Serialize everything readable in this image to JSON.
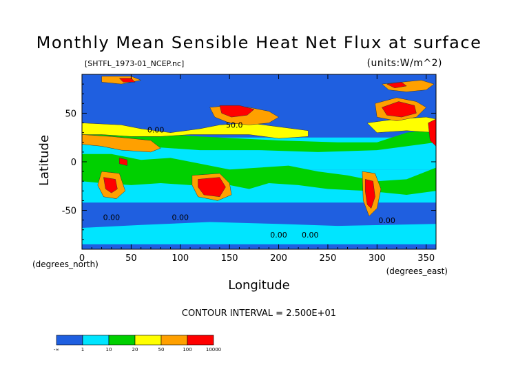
{
  "chart_data": {
    "type": "heatmap",
    "title": "Monthly Mean Sensible Heat Net Flux at surface",
    "subtitle_left": "[SHTFL_1973-01_NCEP.nc]",
    "units_label": "(units:W/m^2)",
    "xlabel": "Longitude",
    "ylabel": "Latitude",
    "x_unit_note": "(degrees_east)",
    "y_unit_note": "(degrees_north)",
    "xlim": [
      0,
      360
    ],
    "ylim": [
      -90,
      90
    ],
    "x_ticks": [
      0,
      50,
      100,
      150,
      200,
      250,
      300,
      350
    ],
    "y_ticks": [
      50,
      0,
      -50
    ],
    "footer": "CONTOUR INTERVAL = 2.500E+01",
    "contour_labels": [
      {
        "text": "50.0",
        "lon": 155,
        "lat": 35
      },
      {
        "text": "0.00",
        "lon": 30,
        "lat": -60
      },
      {
        "text": "0.00",
        "lon": 100,
        "lat": -60
      },
      {
        "text": "0.00",
        "lon": 200,
        "lat": -78
      },
      {
        "text": "0.00",
        "lon": 232,
        "lat": -78
      },
      {
        "text": "0.00",
        "lon": 310,
        "lat": -63
      },
      {
        "text": "0.00",
        "lon": 75,
        "lat": 30
      }
    ],
    "colorbar": {
      "colors": [
        "#1f5fe0",
        "#00e5ff",
        "#00d000",
        "#ffff00",
        "#ffa000",
        "#ff0000"
      ],
      "labels": [
        "-∞",
        "1",
        "10",
        "20",
        "50",
        "100",
        "10000"
      ]
    },
    "field": {
      "description_levels": "0=<1 (blue),1=1-10 (cyan),2=10-20 (green),3=20-50 (yellow),4=50-100 (orange),5=>100 (red)",
      "regions": [
        {
          "level": 0,
          "poly": [
            [
              0,
              90
            ],
            [
              360,
              90
            ],
            [
              360,
              -90
            ],
            [
              0,
              -90
            ]
          ]
        },
        {
          "level": 1,
          "poly": [
            [
              0,
              -8
            ],
            [
              360,
              -8
            ],
            [
              360,
              -42
            ],
            [
              0,
              -42
            ]
          ]
        },
        {
          "level": 1,
          "poly": [
            [
              0,
              25
            ],
            [
              360,
              25
            ],
            [
              360,
              -8
            ],
            [
              0,
              -8
            ]
          ]
        },
        {
          "level": 1,
          "poly": [
            [
              0,
              -68
            ],
            [
              60,
              -65
            ],
            [
              130,
              -62
            ],
            [
              200,
              -64
            ],
            [
              260,
              -66
            ],
            [
              360,
              -64
            ],
            [
              360,
              -85
            ],
            [
              0,
              -85
            ]
          ]
        },
        {
          "level": 2,
          "poly": [
            [
              0,
              8
            ],
            [
              30,
              8
            ],
            [
              60,
              2
            ],
            [
              90,
              4
            ],
            [
              120,
              -2
            ],
            [
              150,
              -8
            ],
            [
              180,
              -6
            ],
            [
              210,
              -4
            ],
            [
              240,
              -10
            ],
            [
              270,
              -14
            ],
            [
              300,
              -20
            ],
            [
              330,
              -18
            ],
            [
              360,
              -6
            ],
            [
              360,
              -30
            ],
            [
              330,
              -34
            ],
            [
              290,
              -30
            ],
            [
              250,
              -28
            ],
            [
              220,
              -24
            ],
            [
              190,
              -22
            ],
            [
              170,
              -28
            ],
            [
              140,
              -22
            ],
            [
              110,
              -24
            ],
            [
              80,
              -22
            ],
            [
              50,
              -24
            ],
            [
              20,
              -22
            ],
            [
              0,
              -20
            ]
          ]
        },
        {
          "level": 2,
          "poly": [
            [
              0,
              34
            ],
            [
              60,
              30
            ],
            [
              120,
              26
            ],
            [
              160,
              24
            ],
            [
              200,
              22
            ],
            [
              260,
              20
            ],
            [
              300,
              20
            ],
            [
              330,
              30
            ],
            [
              360,
              34
            ],
            [
              360,
              20
            ],
            [
              300,
              12
            ],
            [
              240,
              10
            ],
            [
              180,
              12
            ],
            [
              120,
              12
            ],
            [
              60,
              16
            ],
            [
              0,
              18
            ]
          ]
        },
        {
          "level": 3,
          "poly": [
            [
              0,
              40
            ],
            [
              40,
              38
            ],
            [
              60,
              34
            ],
            [
              90,
              30
            ],
            [
              120,
              34
            ],
            [
              140,
              38
            ],
            [
              170,
              40
            ],
            [
              200,
              36
            ],
            [
              230,
              32
            ],
            [
              230,
              26
            ],
            [
              200,
              24
            ],
            [
              170,
              28
            ],
            [
              140,
              28
            ],
            [
              110,
              28
            ],
            [
              80,
              26
            ],
            [
              50,
              26
            ],
            [
              20,
              28
            ],
            [
              0,
              28
            ]
          ]
        },
        {
          "level": 3,
          "poly": [
            [
              290,
              40
            ],
            [
              320,
              44
            ],
            [
              350,
              46
            ],
            [
              360,
              44
            ],
            [
              360,
              30
            ],
            [
              330,
              32
            ],
            [
              300,
              30
            ]
          ]
        },
        {
          "level": 4,
          "poly": [
            [
              130,
              56
            ],
            [
              150,
              58
            ],
            [
              170,
              56
            ],
            [
              190,
              52
            ],
            [
              200,
              46
            ],
            [
              190,
              40
            ],
            [
              170,
              38
            ],
            [
              150,
              40
            ],
            [
              135,
              46
            ]
          ]
        },
        {
          "level": 4,
          "poly": [
            [
              0,
              28
            ],
            [
              30,
              26
            ],
            [
              50,
              24
            ],
            [
              70,
              22
            ],
            [
              80,
              14
            ],
            [
              70,
              10
            ],
            [
              40,
              12
            ],
            [
              20,
              16
            ],
            [
              0,
              18
            ]
          ]
        },
        {
          "level": 4,
          "poly": [
            [
              298,
              60
            ],
            [
              320,
              66
            ],
            [
              340,
              62
            ],
            [
              350,
              56
            ],
            [
              340,
              46
            ],
            [
              320,
              42
            ],
            [
              300,
              46
            ]
          ]
        },
        {
          "level": 4,
          "poly": [
            [
              20,
              -10
            ],
            [
              38,
              -12
            ],
            [
              44,
              -30
            ],
            [
              35,
              -38
            ],
            [
              22,
              -36
            ],
            [
              16,
              -24
            ]
          ]
        },
        {
          "level": 4,
          "poly": [
            [
              112,
              -14
            ],
            [
              140,
              -12
            ],
            [
              150,
              -22
            ],
            [
              152,
              -34
            ],
            [
              138,
              -40
            ],
            [
              118,
              -36
            ],
            [
              112,
              -24
            ]
          ]
        },
        {
          "level": 4,
          "poly": [
            [
              285,
              -10
            ],
            [
              298,
              -12
            ],
            [
              304,
              -28
            ],
            [
              300,
              -48
            ],
            [
              292,
              -56
            ],
            [
              286,
              -40
            ]
          ]
        },
        {
          "level": 4,
          "poly": [
            [
              20,
              88
            ],
            [
              50,
              88
            ],
            [
              60,
              84
            ],
            [
              40,
              80
            ],
            [
              20,
              82
            ]
          ]
        },
        {
          "level": 4,
          "poly": [
            [
              305,
              80
            ],
            [
              345,
              84
            ],
            [
              358,
              80
            ],
            [
              350,
              74
            ],
            [
              330,
              72
            ],
            [
              312,
              74
            ]
          ]
        },
        {
          "level": 5,
          "poly": [
            [
              140,
              58
            ],
            [
              160,
              58
            ],
            [
              175,
              54
            ],
            [
              168,
              48
            ],
            [
              152,
              46
            ],
            [
              142,
              50
            ]
          ]
        },
        {
          "level": 5,
          "poly": [
            [
              305,
              56
            ],
            [
              322,
              62
            ],
            [
              338,
              58
            ],
            [
              340,
              50
            ],
            [
              325,
              46
            ],
            [
              310,
              48
            ]
          ]
        },
        {
          "level": 5,
          "poly": [
            [
              22,
              -16
            ],
            [
              34,
              -18
            ],
            [
              36,
              -28
            ],
            [
              30,
              -32
            ],
            [
              24,
              -28
            ]
          ]
        },
        {
          "level": 5,
          "poly": [
            [
              118,
              -18
            ],
            [
              140,
              -16
            ],
            [
              146,
              -26
            ],
            [
              140,
              -36
            ],
            [
              124,
              -34
            ],
            [
              118,
              -26
            ]
          ]
        },
        {
          "level": 5,
          "poly": [
            [
              288,
              -18
            ],
            [
              296,
              -20
            ],
            [
              298,
              -36
            ],
            [
              294,
              -48
            ],
            [
              290,
              -44
            ],
            [
              288,
              -30
            ]
          ]
        },
        {
          "level": 5,
          "poly": [
            [
              38,
              86
            ],
            [
              50,
              86
            ],
            [
              54,
              82
            ],
            [
              42,
              82
            ]
          ]
        },
        {
          "level": 5,
          "poly": [
            [
              310,
              80
            ],
            [
              325,
              82
            ],
            [
              330,
              78
            ],
            [
              318,
              76
            ]
          ]
        },
        {
          "level": 5,
          "poly": [
            [
              352,
              40
            ],
            [
              360,
              44
            ],
            [
              360,
              16
            ],
            [
              354,
              22
            ]
          ]
        },
        {
          "level": 5,
          "poly": [
            [
              38,
              4
            ],
            [
              46,
              2
            ],
            [
              46,
              -4
            ],
            [
              38,
              -2
            ]
          ]
        }
      ]
    }
  }
}
